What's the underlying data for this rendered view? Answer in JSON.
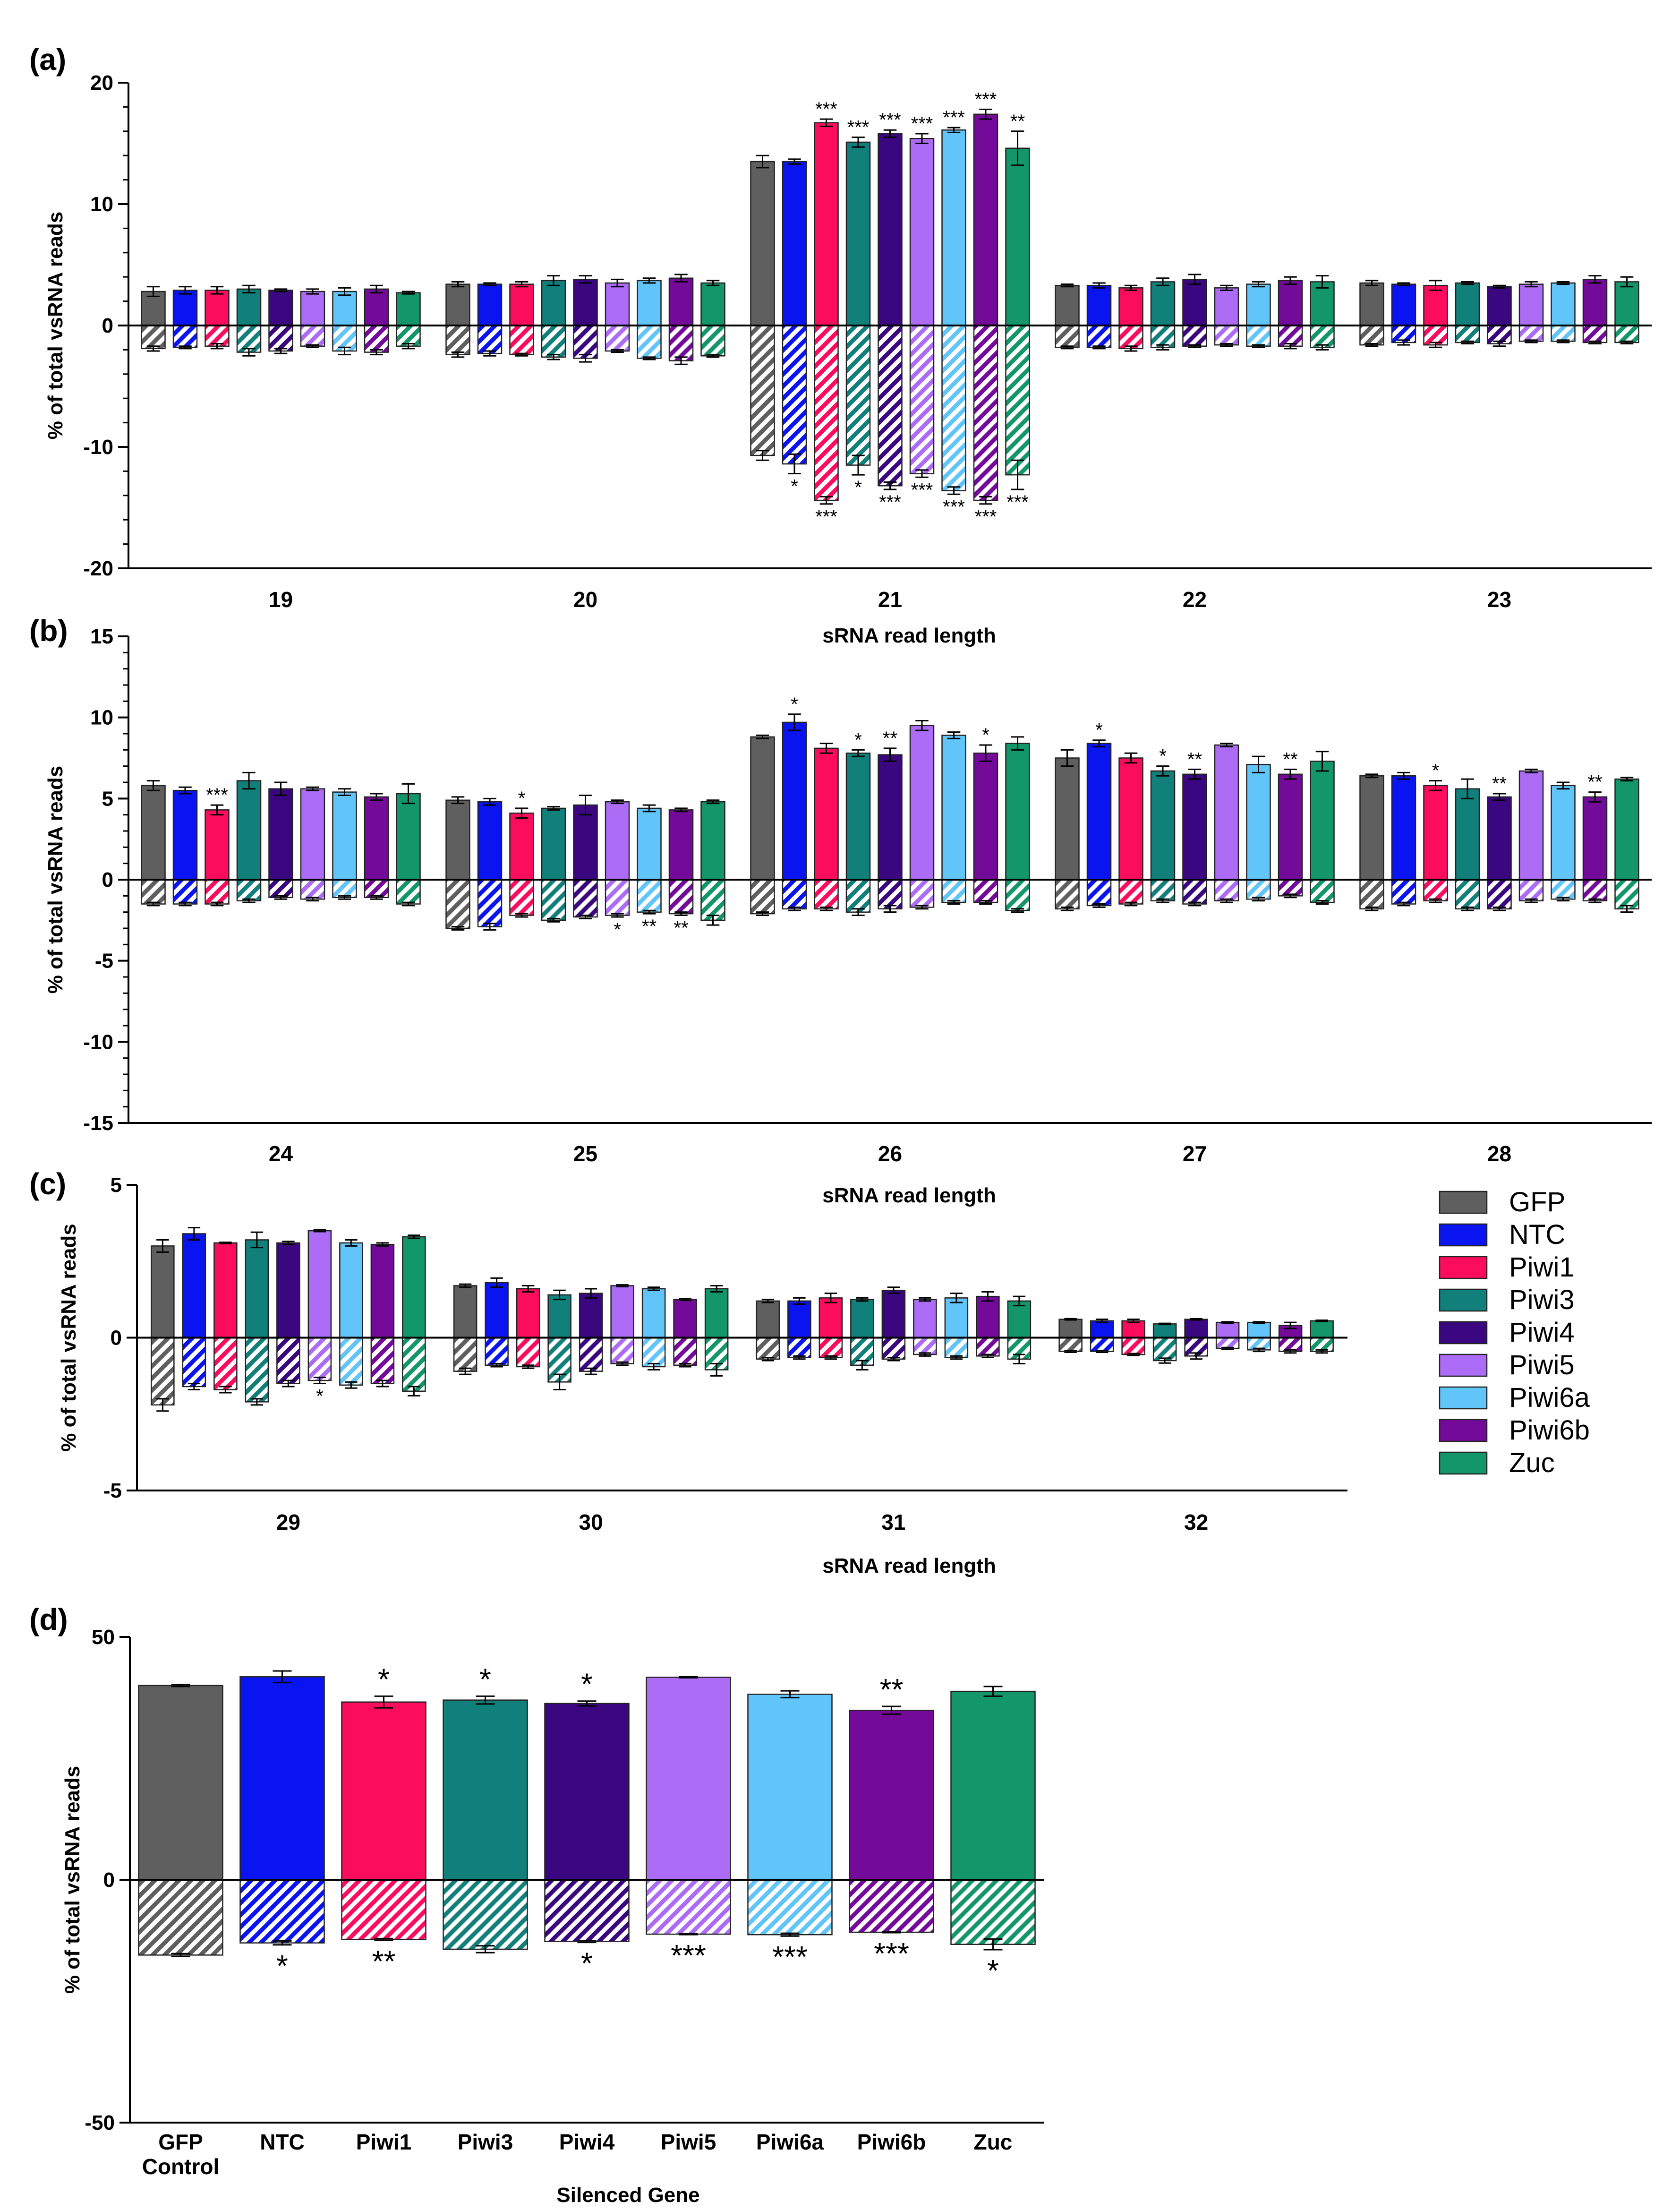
{
  "colors": {
    "GFP": "#5f5f5f",
    "NTC": "#0a14f0",
    "Piwi1": "#fc0c5c",
    "Piwi3": "#117f7a",
    "Piwi4": "#3a0780",
    "Piwi5": "#ac6cf6",
    "Piwi6a": "#62c5fa",
    "Piwi6b": "#730a9a",
    "Zuc": "#12966a"
  },
  "legend": [
    "GFP",
    "NTC",
    "Piwi1",
    "Piwi3",
    "Piwi4",
    "Piwi5",
    "Piwi6a",
    "Piwi6b",
    "Zuc"
  ],
  "chart_data": [
    {
      "panel": "(a)",
      "type": "bar",
      "ylabel": "% of total vsRNA reads",
      "xlabel": "sRNA read length",
      "ylim": [
        -20,
        20
      ],
      "yticks": [
        -20,
        -10,
        0,
        10,
        20
      ],
      "minor_step": 2,
      "categories": [
        "19",
        "20",
        "21",
        "22",
        "23"
      ],
      "series_names": [
        "GFP",
        "NTC",
        "Piwi1",
        "Piwi3",
        "Piwi4",
        "Piwi5",
        "Piwi6a",
        "Piwi6b",
        "Zuc"
      ],
      "positive": [
        [
          2.8,
          3.4,
          13.5,
          3.3,
          3.5
        ],
        [
          2.9,
          3.4,
          13.5,
          3.3,
          3.4
        ],
        [
          2.9,
          3.4,
          16.7,
          3.1,
          3.3
        ],
        [
          3.0,
          3.7,
          15.1,
          3.6,
          3.5
        ],
        [
          2.9,
          3.8,
          15.8,
          3.8,
          3.2
        ],
        [
          2.8,
          3.5,
          15.4,
          3.1,
          3.4
        ],
        [
          2.8,
          3.7,
          16.1,
          3.4,
          3.5
        ],
        [
          3.0,
          3.9,
          17.4,
          3.7,
          3.8
        ],
        [
          2.7,
          3.5,
          14.6,
          3.6,
          3.6
        ]
      ],
      "positive_err": [
        [
          0.4,
          0.2,
          0.5,
          0.1,
          0.2
        ],
        [
          0.3,
          0.1,
          0.2,
          0.2,
          0.1
        ],
        [
          0.3,
          0.2,
          0.3,
          0.2,
          0.4
        ],
        [
          0.3,
          0.4,
          0.4,
          0.3,
          0.1
        ],
        [
          0.1,
          0.3,
          0.3,
          0.4,
          0.1
        ],
        [
          0.2,
          0.3,
          0.4,
          0.2,
          0.2
        ],
        [
          0.3,
          0.2,
          0.2,
          0.2,
          0.1
        ],
        [
          0.3,
          0.3,
          0.4,
          0.3,
          0.3
        ],
        [
          0.1,
          0.2,
          1.4,
          0.5,
          0.4
        ]
      ],
      "negative": [
        [
          -1.9,
          -2.4,
          -10.7,
          -1.8,
          -1.6
        ],
        [
          -1.8,
          -2.3,
          -11.4,
          -1.8,
          -1.4
        ],
        [
          -1.7,
          -2.4,
          -14.4,
          -1.9,
          -1.6
        ],
        [
          -2.2,
          -2.6,
          -11.5,
          -1.8,
          -1.4
        ],
        [
          -2.1,
          -2.7,
          -13.2,
          -1.7,
          -1.5
        ],
        [
          -1.7,
          -2.1,
          -12.2,
          -1.6,
          -1.3
        ],
        [
          -2.1,
          -2.7,
          -13.6,
          -1.7,
          -1.3
        ],
        [
          -2.2,
          -2.9,
          -14.4,
          -1.7,
          -1.4
        ],
        [
          -1.7,
          -2.5,
          -12.3,
          -1.8,
          -1.4
        ]
      ],
      "negative_err": [
        [
          0.2,
          0.2,
          0.4,
          0.1,
          0.1
        ],
        [
          0.1,
          0.2,
          0.8,
          0.1,
          0.2
        ],
        [
          0.2,
          0.1,
          0.3,
          0.2,
          0.2
        ],
        [
          0.3,
          0.2,
          0.8,
          0.2,
          0.1
        ],
        [
          0.2,
          0.3,
          0.3,
          0.1,
          0.2
        ],
        [
          0.1,
          0.1,
          0.3,
          0.1,
          0.1
        ],
        [
          0.3,
          0.1,
          0.3,
          0.1,
          0.1
        ],
        [
          0.2,
          0.3,
          0.3,
          0.2,
          0.1
        ],
        [
          0.2,
          0.1,
          1.2,
          0.2,
          0.1
        ]
      ],
      "annotations_positive": [
        {
          "category": "21",
          "series": "Piwi1",
          "text": "***"
        },
        {
          "category": "21",
          "series": "Piwi3",
          "text": "***"
        },
        {
          "category": "21",
          "series": "Piwi4",
          "text": "***"
        },
        {
          "category": "21",
          "series": "Piwi5",
          "text": "***"
        },
        {
          "category": "21",
          "series": "Piwi6a",
          "text": "***"
        },
        {
          "category": "21",
          "series": "Piwi6b",
          "text": "***"
        },
        {
          "category": "21",
          "series": "Zuc",
          "text": "**"
        }
      ],
      "annotations_negative": [
        {
          "category": "21",
          "series": "NTC",
          "text": "*"
        },
        {
          "category": "21",
          "series": "Piwi1",
          "text": "***"
        },
        {
          "category": "21",
          "series": "Piwi3",
          "text": "*"
        },
        {
          "category": "21",
          "series": "Piwi4",
          "text": "***"
        },
        {
          "category": "21",
          "series": "Piwi5",
          "text": "***"
        },
        {
          "category": "21",
          "series": "Piwi6a",
          "text": "***"
        },
        {
          "category": "21",
          "series": "Piwi6b",
          "text": "***"
        },
        {
          "category": "21",
          "series": "Zuc",
          "text": "***"
        }
      ]
    },
    {
      "panel": "(b)",
      "type": "bar",
      "ylabel": "% of total vsRNA reads",
      "xlabel": "sRNA read length",
      "ylim": [
        -15,
        15
      ],
      "yticks": [
        -15,
        -10,
        -5,
        0,
        5,
        10,
        15
      ],
      "minor_step": 1,
      "categories": [
        "24",
        "25",
        "26",
        "27",
        "28"
      ],
      "series_names": [
        "GFP",
        "NTC",
        "Piwi1",
        "Piwi3",
        "Piwi4",
        "Piwi5",
        "Piwi6a",
        "Piwi6b",
        "Zuc"
      ],
      "positive": [
        [
          5.8,
          4.9,
          8.8,
          7.5,
          6.4
        ],
        [
          5.5,
          4.8,
          9.7,
          8.4,
          6.4
        ],
        [
          4.3,
          4.1,
          8.1,
          7.5,
          5.8
        ],
        [
          6.1,
          4.4,
          7.8,
          6.7,
          5.6
        ],
        [
          5.6,
          4.6,
          7.7,
          6.5,
          5.1
        ],
        [
          5.6,
          4.8,
          9.5,
          8.3,
          6.7
        ],
        [
          5.4,
          4.4,
          8.9,
          7.1,
          5.8
        ],
        [
          5.1,
          4.3,
          7.8,
          6.5,
          5.1
        ],
        [
          5.3,
          4.8,
          8.4,
          7.3,
          6.2
        ]
      ],
      "positive_err": [
        [
          0.3,
          0.2,
          0.1,
          0.5,
          0.1
        ],
        [
          0.2,
          0.2,
          0.5,
          0.2,
          0.2
        ],
        [
          0.3,
          0.3,
          0.3,
          0.3,
          0.3
        ],
        [
          0.5,
          0.1,
          0.2,
          0.3,
          0.6
        ],
        [
          0.4,
          0.6,
          0.4,
          0.3,
          0.2
        ],
        [
          0.1,
          0.1,
          0.3,
          0.1,
          0.1
        ],
        [
          0.2,
          0.2,
          0.2,
          0.5,
          0.2
        ],
        [
          0.2,
          0.1,
          0.5,
          0.3,
          0.3
        ],
        [
          0.6,
          0.1,
          0.4,
          0.6,
          0.1
        ]
      ],
      "negative": [
        [
          -1.5,
          -3.0,
          -2.1,
          -1.8,
          -1.8
        ],
        [
          -1.5,
          -2.9,
          -1.8,
          -1.6,
          -1.5
        ],
        [
          -1.5,
          -2.2,
          -1.8,
          -1.5,
          -1.3
        ],
        [
          -1.3,
          -2.5,
          -2.0,
          -1.3,
          -1.8
        ],
        [
          -1.1,
          -2.3,
          -1.8,
          -1.5,
          -1.8
        ],
        [
          -1.2,
          -2.2,
          -1.7,
          -1.3,
          -1.3
        ],
        [
          -1.1,
          -2.0,
          -1.4,
          -1.2,
          -1.2
        ],
        [
          -1.1,
          -2.1,
          -1.4,
          -1.0,
          -1.3
        ],
        [
          -1.5,
          -2.5,
          -1.9,
          -1.4,
          -1.8
        ]
      ],
      "negative_err": [
        [
          0.1,
          0.1,
          0.1,
          0.1,
          0.1
        ],
        [
          0.1,
          0.2,
          0.1,
          0.1,
          0.1
        ],
        [
          0.1,
          0.1,
          0.1,
          0.1,
          0.1
        ],
        [
          0.1,
          0.1,
          0.2,
          0.1,
          0.1
        ],
        [
          0.1,
          0.1,
          0.2,
          0.1,
          0.1
        ],
        [
          0.1,
          0.1,
          0.1,
          0.1,
          0.1
        ],
        [
          0.1,
          0.1,
          0.1,
          0.1,
          0.1
        ],
        [
          0.1,
          0.1,
          0.1,
          0.1,
          0.1
        ],
        [
          0.1,
          0.3,
          0.1,
          0.1,
          0.2
        ]
      ],
      "annotations_positive": [
        {
          "category": "24",
          "series": "Piwi1",
          "text": "***"
        },
        {
          "category": "25",
          "series": "Piwi1",
          "text": "*"
        },
        {
          "category": "26",
          "series": "NTC",
          "text": "*"
        },
        {
          "category": "26",
          "series": "Piwi3",
          "text": "*"
        },
        {
          "category": "26",
          "series": "Piwi4",
          "text": "**"
        },
        {
          "category": "26",
          "series": "Piwi6b",
          "text": "*"
        },
        {
          "category": "27",
          "series": "NTC",
          "text": "*"
        },
        {
          "category": "27",
          "series": "Piwi3",
          "text": "*"
        },
        {
          "category": "27",
          "series": "Piwi4",
          "text": "**"
        },
        {
          "category": "27",
          "series": "Piwi6b",
          "text": "**"
        },
        {
          "category": "28",
          "series": "Piwi1",
          "text": "*"
        },
        {
          "category": "28",
          "series": "Piwi4",
          "text": "**"
        },
        {
          "category": "28",
          "series": "Piwi6b",
          "text": "**"
        }
      ],
      "annotations_negative": [
        {
          "category": "25",
          "series": "Piwi5",
          "text": "*"
        },
        {
          "category": "25",
          "series": "Piwi6a",
          "text": "**"
        },
        {
          "category": "25",
          "series": "Piwi6b",
          "text": "**"
        }
      ]
    },
    {
      "panel": "(c)",
      "type": "bar",
      "ylabel": "% of total vsRNA reads",
      "xlabel": "sRNA read length",
      "ylim": [
        -5,
        5
      ],
      "yticks": [
        -5,
        0,
        5
      ],
      "minor_step": 0,
      "categories": [
        "29",
        "30",
        "31",
        "32"
      ],
      "series_names": [
        "GFP",
        "NTC",
        "Piwi1",
        "Piwi3",
        "Piwi4",
        "Piwi5",
        "Piwi6a",
        "Piwi6b",
        "Zuc"
      ],
      "positive": [
        [
          3.0,
          1.7,
          1.2,
          0.6
        ],
        [
          3.4,
          1.8,
          1.2,
          0.55
        ],
        [
          3.1,
          1.6,
          1.3,
          0.55
        ],
        [
          3.2,
          1.4,
          1.25,
          0.45
        ],
        [
          3.1,
          1.45,
          1.55,
          0.6
        ],
        [
          3.5,
          1.7,
          1.25,
          0.5
        ],
        [
          3.1,
          1.6,
          1.3,
          0.5
        ],
        [
          3.05,
          1.25,
          1.35,
          0.4
        ],
        [
          3.3,
          1.6,
          1.2,
          0.55
        ]
      ],
      "positive_err": [
        [
          0.2,
          0.05,
          0.05,
          0.02
        ],
        [
          0.2,
          0.15,
          0.1,
          0.05
        ],
        [
          0.02,
          0.1,
          0.15,
          0.05
        ],
        [
          0.25,
          0.15,
          0.05,
          0.02
        ],
        [
          0.05,
          0.15,
          0.1,
          0.02
        ],
        [
          0.03,
          0.03,
          0.05,
          0.02
        ],
        [
          0.1,
          0.05,
          0.15,
          0.02
        ],
        [
          0.05,
          0.03,
          0.15,
          0.1
        ],
        [
          0.05,
          0.1,
          0.15,
          0.02
        ]
      ],
      "negative": [
        [
          -2.2,
          -1.1,
          -0.7,
          -0.45
        ],
        [
          -1.6,
          -0.9,
          -0.65,
          -0.45
        ],
        [
          -1.7,
          -0.95,
          -0.65,
          -0.55
        ],
        [
          -2.1,
          -1.45,
          -0.9,
          -0.75
        ],
        [
          -1.5,
          -1.1,
          -0.7,
          -0.6
        ],
        [
          -1.4,
          -0.85,
          -0.55,
          -0.35
        ],
        [
          -1.55,
          -0.95,
          -0.65,
          -0.4
        ],
        [
          -1.5,
          -0.9,
          -0.6,
          -0.45
        ],
        [
          -1.75,
          -1.05,
          -0.7,
          -0.45
        ]
      ],
      "negative_err": [
        [
          0.2,
          0.1,
          0.05,
          0.03
        ],
        [
          0.1,
          0.05,
          0.05,
          0.03
        ],
        [
          0.1,
          0.05,
          0.05,
          0.03
        ],
        [
          0.1,
          0.25,
          0.15,
          0.08
        ],
        [
          0.1,
          0.1,
          0.05,
          0.1
        ],
        [
          0.1,
          0.05,
          0.05,
          0.03
        ],
        [
          0.1,
          0.1,
          0.05,
          0.05
        ],
        [
          0.1,
          0.05,
          0.05,
          0.05
        ],
        [
          0.15,
          0.2,
          0.15,
          0.05
        ]
      ],
      "annotations_positive": [],
      "annotations_negative": [
        {
          "category": "29",
          "series": "Piwi5",
          "text": "*"
        }
      ]
    },
    {
      "panel": "(d)",
      "type": "bar",
      "ylabel": "% of total vsRNA reads",
      "xlabel": "Silenced Gene",
      "ylim": [
        -50,
        50
      ],
      "yticks": [
        -50,
        0,
        50
      ],
      "minor_step": 0,
      "categories": [
        "GFP Control",
        "NTC",
        "Piwi1",
        "Piwi3",
        "Piwi4",
        "Piwi5",
        "Piwi6a",
        "Piwi6b",
        "Zuc"
      ],
      "series_key": [
        "GFP",
        "NTC",
        "Piwi1",
        "Piwi3",
        "Piwi4",
        "Piwi5",
        "Piwi6a",
        "Piwi6b",
        "Zuc"
      ],
      "positive": [
        40.0,
        41.8,
        36.6,
        37.0,
        36.3,
        41.7,
        38.2,
        34.9,
        38.8
      ],
      "positive_err": [
        0.2,
        1.2,
        1.2,
        0.8,
        0.5,
        0.1,
        0.7,
        0.8,
        1.0
      ],
      "negative": [
        -15.5,
        -13.0,
        -12.3,
        -14.3,
        -12.7,
        -11.2,
        -11.3,
        -10.8,
        -13.3
      ],
      "negative_err": [
        0.3,
        0.4,
        0.2,
        0.7,
        0.2,
        0.1,
        0.3,
        0.1,
        1.1
      ],
      "annotations_positive": [
        {
          "category": "Piwi1",
          "text": "*"
        },
        {
          "category": "Piwi3",
          "text": "*"
        },
        {
          "category": "Piwi4",
          "text": "*"
        },
        {
          "category": "Piwi6b",
          "text": "**"
        }
      ],
      "annotations_negative": [
        {
          "category": "NTC",
          "text": "*"
        },
        {
          "category": "Piwi1",
          "text": "**"
        },
        {
          "category": "Piwi4",
          "text": "*"
        },
        {
          "category": "Piwi5",
          "text": "***"
        },
        {
          "category": "Piwi6a",
          "text": "***"
        },
        {
          "category": "Piwi6b",
          "text": "***"
        },
        {
          "category": "Zuc",
          "text": "*"
        }
      ]
    }
  ]
}
